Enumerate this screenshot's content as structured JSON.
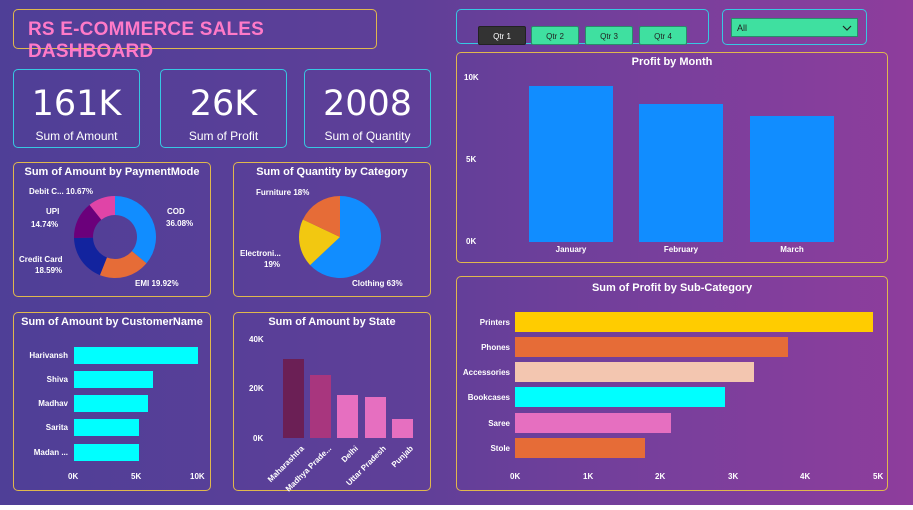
{
  "title": "RS E-COMMERCE SALES DASHBOARD",
  "kpis": [
    {
      "value": "161K",
      "label": "Sum of Amount"
    },
    {
      "value": "26K",
      "label": "Sum of Profit"
    },
    {
      "value": "2008",
      "label": "Sum of Quantity"
    }
  ],
  "quarters": [
    "Qtr 1",
    "Qtr 2",
    "Qtr 3",
    "Qtr 4"
  ],
  "active_quarter": "Qtr 1",
  "dropdown": {
    "value": "All",
    "icon": "chevron-down-icon"
  },
  "colors": {
    "accent_border": "#e0b84d",
    "kpi_border": "#37c8e2",
    "title": "#ff7ac8",
    "slicer": "#3fe0a0"
  },
  "payment": {
    "title": "Sum of Amount by PaymentMode",
    "labels": {
      "debit": "Debit C... 10.67%",
      "upi_name": "UPI",
      "upi_pct": "14.74%",
      "cc_name": "Credit Card",
      "cc_pct": "18.59%",
      "cod_name": "COD",
      "cod_pct": "36.08%",
      "emi": "EMI 19.92%"
    }
  },
  "category": {
    "title": "Sum of Quantity by Category",
    "labels": {
      "furniture": "Furniture 18%",
      "elec_name": "Electroni...",
      "elec_pct": "19%",
      "clothing": "Clothing 63%"
    }
  },
  "profit_month": {
    "title": "Profit by Month",
    "ticks": [
      "10K",
      "5K",
      "0K"
    ]
  },
  "customers": {
    "title": "Sum of Amount by CustomerName",
    "ticks": [
      "0K",
      "5K",
      "10K"
    ]
  },
  "state": {
    "title": "Sum of Amount by State",
    "ticks": [
      "40K",
      "20K",
      "0K"
    ]
  },
  "subcat": {
    "title": "Sum of Profit by Sub-Category",
    "ticks": [
      "0K",
      "1K",
      "2K",
      "3K",
      "4K",
      "5K"
    ]
  },
  "chart_data": [
    {
      "type": "pie",
      "title": "Sum of Amount by PaymentMode",
      "categories": [
        "COD",
        "EMI",
        "Credit Card",
        "UPI",
        "Debit Card"
      ],
      "values": [
        36.08,
        19.92,
        18.59,
        14.74,
        10.67
      ],
      "colors": [
        "#118dff",
        "#e66c37",
        "#12239e",
        "#6b007b",
        "#e044a7"
      ]
    },
    {
      "type": "pie",
      "title": "Sum of Quantity by Category",
      "categories": [
        "Clothing",
        "Electronics",
        "Furniture"
      ],
      "values": [
        63,
        19,
        18
      ],
      "colors": [
        "#118dff",
        "#f2c811",
        "#e66c37"
      ]
    },
    {
      "type": "bar",
      "title": "Profit by Month",
      "categories": [
        "January",
        "February",
        "March"
      ],
      "values": [
        9500,
        8400,
        7700
      ],
      "ylim": [
        0,
        10000
      ]
    },
    {
      "type": "bar",
      "title": "Sum of Amount by CustomerName",
      "categories": [
        "Harivansh",
        "Shiva",
        "Madhav",
        "Sarita",
        "Madan ..."
      ],
      "values": [
        9900,
        6300,
        5900,
        5200,
        5200
      ],
      "xlim": [
        0,
        10000
      ]
    },
    {
      "type": "bar",
      "title": "Sum of Amount by State",
      "categories": [
        "Maharashtra",
        "Madhya Prade...",
        "Delhi",
        "Uttar Pradesh",
        "Punjab"
      ],
      "values": [
        32000,
        25500,
        17500,
        16500,
        7500
      ],
      "ylim": [
        0,
        40000
      ],
      "colors": [
        "#6b1f55",
        "#a8367e",
        "#e66fc0",
        "#e66fc0",
        "#e66fc0"
      ]
    },
    {
      "type": "bar",
      "title": "Sum of Profit by Sub-Category",
      "categories": [
        "Printers",
        "Phones",
        "Accessories",
        "Bookcases",
        "Saree",
        "Stole"
      ],
      "values": [
        4950,
        3770,
        3300,
        2900,
        2150,
        1800
      ],
      "xlim": [
        0,
        5000
      ],
      "colors": [
        "#ffcc00",
        "#e66c37",
        "#f3c6b0",
        "#00ffff",
        "#e66fc0",
        "#e66c37"
      ]
    }
  ]
}
